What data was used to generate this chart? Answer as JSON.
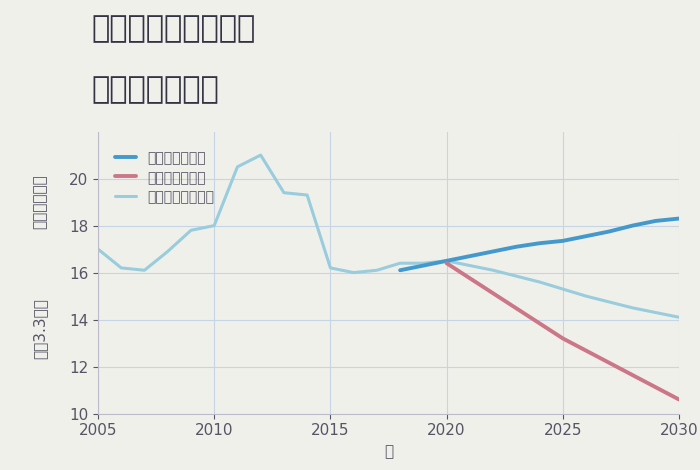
{
  "title_line1": "千葉県成田市大沼の",
  "title_line2": "土地の価格推移",
  "xlabel": "年",
  "ylabel_top": "単価（万円）",
  "ylabel_bottom": "坪（3.3㎡）",
  "background_color": "#f0f0eb",
  "plot_background_color": "#f0f0eb",
  "grid_color": "#c5d5e5",
  "xlim": [
    2005,
    2030
  ],
  "ylim": [
    10,
    22
  ],
  "yticks": [
    10,
    12,
    14,
    16,
    18,
    20
  ],
  "xticks": [
    2005,
    2010,
    2015,
    2020,
    2025,
    2030
  ],
  "good_scenario": {
    "label": "グッドシナリオ",
    "color": "#4499cc",
    "linewidth": 2.8,
    "years": [
      2018,
      2019,
      2020,
      2021,
      2022,
      2023,
      2024,
      2025,
      2026,
      2027,
      2028,
      2029,
      2030
    ],
    "values": [
      16.1,
      16.3,
      16.5,
      16.7,
      16.9,
      17.1,
      17.25,
      17.35,
      17.55,
      17.75,
      18.0,
      18.2,
      18.3
    ]
  },
  "bad_scenario": {
    "label": "バッドシナリオ",
    "color": "#cc7788",
    "linewidth": 2.8,
    "years": [
      2020,
      2025,
      2030
    ],
    "values": [
      16.4,
      13.2,
      10.6
    ]
  },
  "normal_scenario": {
    "label": "ノーマルシナリオ",
    "color": "#99ccdd",
    "linewidth": 2.2,
    "historical_years": [
      2005,
      2006,
      2007,
      2008,
      2009,
      2010,
      2011,
      2012,
      2013,
      2014,
      2015,
      2016,
      2017,
      2018,
      2019,
      2020
    ],
    "historical_values": [
      17.0,
      16.2,
      16.1,
      16.9,
      17.8,
      18.0,
      20.5,
      21.0,
      19.4,
      19.3,
      16.2,
      16.0,
      16.1,
      16.4,
      16.4,
      16.5
    ],
    "forecast_years": [
      2020,
      2022,
      2024,
      2026,
      2028,
      2030
    ],
    "forecast_values": [
      16.5,
      16.1,
      15.6,
      15.0,
      14.5,
      14.1
    ]
  },
  "title_fontsize": 22,
  "axis_fontsize": 11,
  "tick_fontsize": 11,
  "legend_fontsize": 10
}
